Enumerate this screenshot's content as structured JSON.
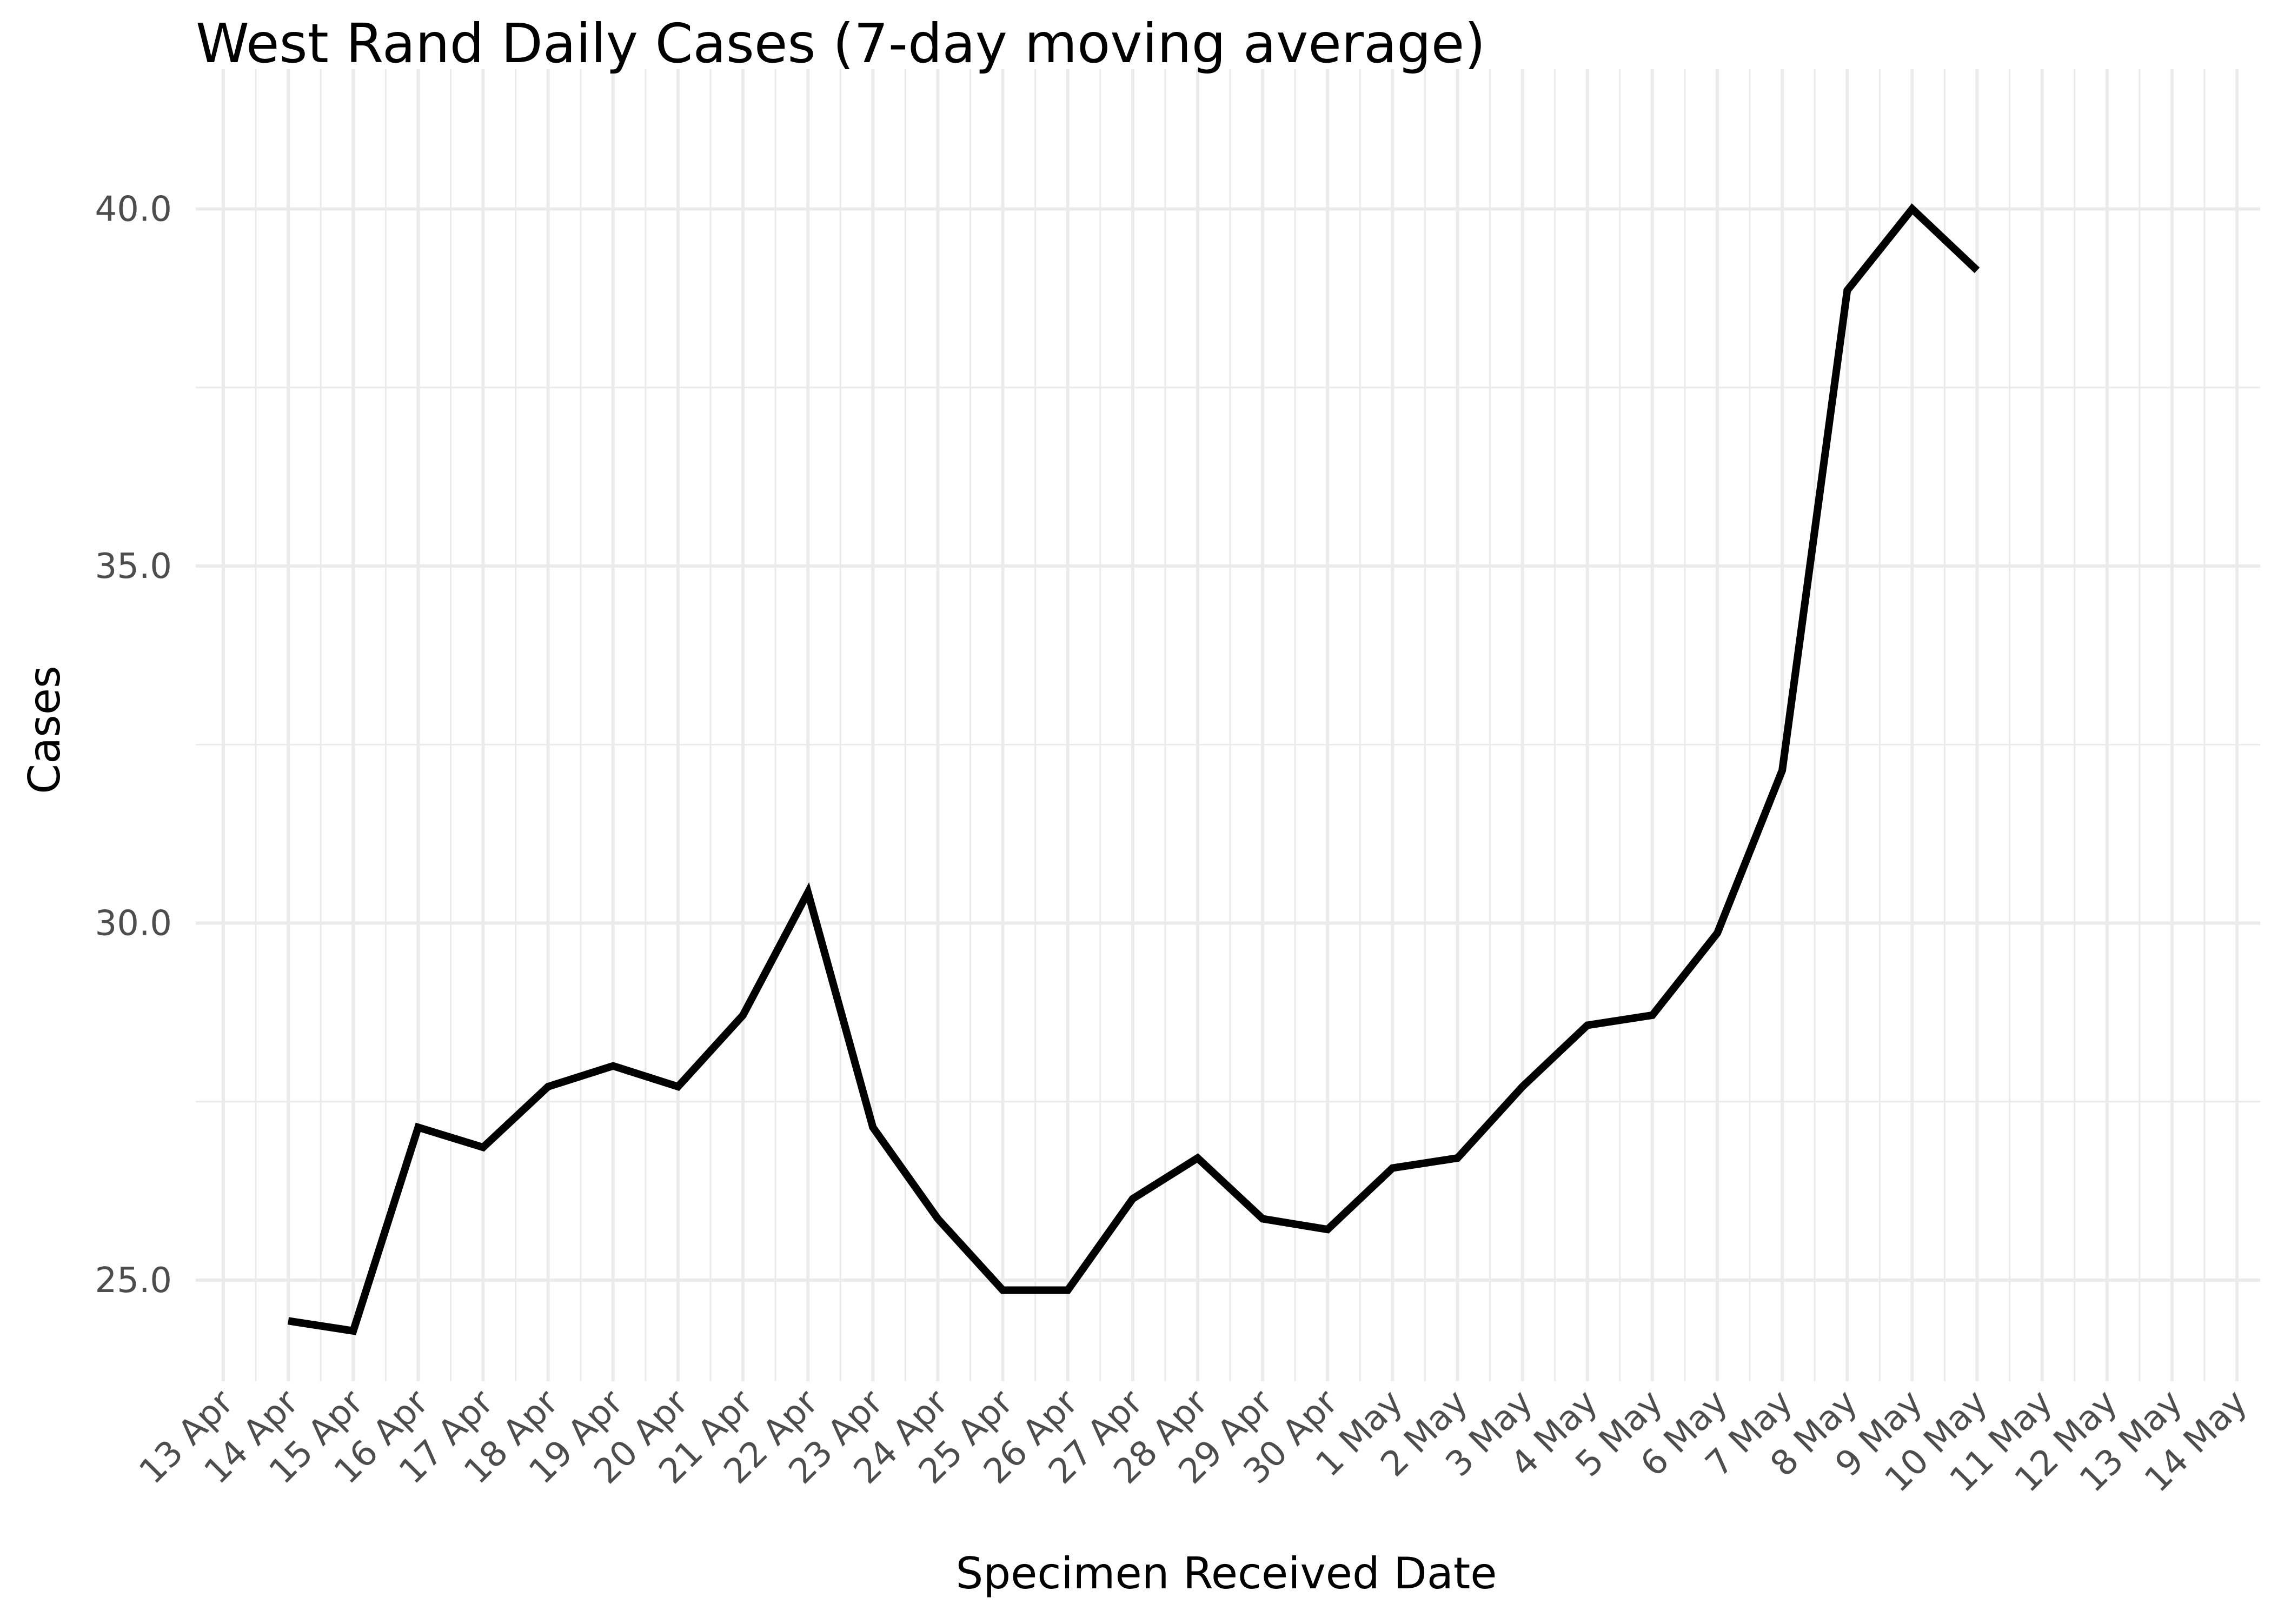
{
  "chart_data": {
    "type": "line",
    "title": "West Rand Daily Cases (7-day moving average)",
    "xlabel": "Specimen Received Date",
    "ylabel": "Cases",
    "x_tick_labels": [
      "13 Apr",
      "14 Apr",
      "15 Apr",
      "16 Apr",
      "17 Apr",
      "18 Apr",
      "19 Apr",
      "20 Apr",
      "21 Apr",
      "22 Apr",
      "23 Apr",
      "24 Apr",
      "25 Apr",
      "26 Apr",
      "27 Apr",
      "28 Apr",
      "29 Apr",
      "30 Apr",
      "1 May",
      "2 May",
      "3 May",
      "4 May",
      "5 May",
      "6 May",
      "7 May",
      "8 May",
      "9 May",
      "10 May",
      "11 May",
      "12 May",
      "13 May",
      "14 May"
    ],
    "y_ticks": [
      25.0,
      30.0,
      35.0,
      40.0
    ],
    "y_tick_labels": [
      "25.0",
      "30.0",
      "35.0",
      "40.0"
    ],
    "ylim": [
      23.6,
      41.5
    ],
    "xlim": [
      "13 Apr",
      "14 May"
    ],
    "grid": true,
    "series": [
      {
        "color": "#000000",
        "x": [
          "14 Apr",
          "15 Apr",
          "16 Apr",
          "17 Apr",
          "18 Apr",
          "19 Apr",
          "20 Apr",
          "21 Apr",
          "22 Apr",
          "23 Apr",
          "24 Apr",
          "25 Apr",
          "26 Apr",
          "27 Apr",
          "28 Apr",
          "29 Apr",
          "30 Apr",
          "1 May",
          "2 May",
          "3 May",
          "4 May",
          "5 May",
          "6 May",
          "7 May",
          "8 May",
          "9 May",
          "10 May"
        ],
        "values": [
          24.43,
          24.29,
          27.14,
          26.86,
          27.71,
          28.0,
          27.71,
          28.71,
          30.43,
          27.14,
          25.86,
          24.86,
          24.86,
          26.14,
          26.71,
          25.86,
          25.71,
          26.57,
          26.71,
          27.71,
          28.57,
          28.71,
          29.86,
          32.14,
          38.86,
          40.0,
          39.14
        ]
      }
    ]
  }
}
